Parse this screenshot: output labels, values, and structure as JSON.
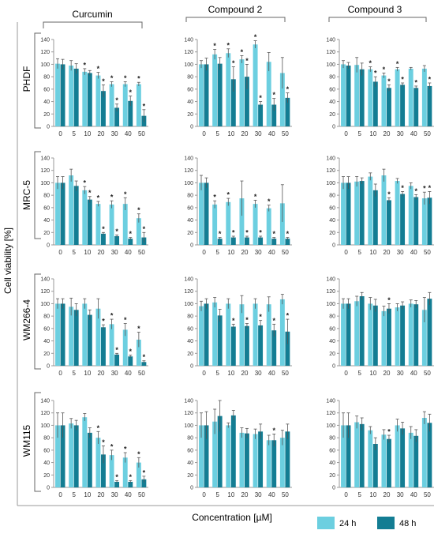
{
  "columns": [
    "Curcumin",
    "Compound 2",
    "Compound 3"
  ],
  "rows": [
    "PHDF",
    "MRC-5",
    "WM266-4",
    "WM115"
  ],
  "ylabel": "Cell viability [%]",
  "xlabel": "Concentration [µM]",
  "legend": [
    {
      "label": "24 h",
      "color": "#6ccfe0"
    },
    {
      "label": "48 h",
      "color": "#137d93"
    }
  ],
  "colors": {
    "series_24h": "#6ccfe0",
    "series_48h": "#137d93",
    "axis": "#999999"
  },
  "chart_data": {
    "type": "bar",
    "layout": "grid of grouped bar charts, 4 rows x 3 columns",
    "categories": [
      "0",
      "5",
      "10",
      "20",
      "30",
      "40",
      "50"
    ],
    "yticks": [
      "0",
      "20",
      "40",
      "60",
      "80",
      "100",
      "120",
      "140"
    ],
    "ylim": [
      0,
      140
    ],
    "legend_position": "bottom-right",
    "panels": [
      {
        "row": "PHDF",
        "column": "Curcumin",
        "yticks": [
          "0",
          "20",
          "40",
          "60",
          "80",
          "100",
          "120",
          "140"
        ],
        "series": [
          {
            "name": "24 h",
            "values": [
              101,
              98,
              88,
              82,
              68,
              68,
              68
            ],
            "errors": [
              8,
              8,
              5,
              5,
              4,
              4,
              3
            ],
            "sig": [
              false,
              false,
              true,
              true,
              true,
              true,
              true
            ]
          },
          {
            "name": "48 h",
            "values": [
              100,
              93,
              86,
              57,
              30,
              41,
              17
            ],
            "errors": [
              8,
              8,
              4,
              10,
              6,
              8,
              10
            ],
            "sig": [
              false,
              false,
              false,
              true,
              true,
              true,
              true
            ]
          }
        ]
      },
      {
        "row": "PHDF",
        "column": "Compound 2",
        "yticks": [
          "0",
          "20",
          "40",
          "60",
          "80",
          "100",
          "120",
          "140"
        ],
        "series": [
          {
            "name": "24 h",
            "values": [
              100,
              116,
              118,
              108,
              132,
              104,
              86
            ],
            "errors": [
              6,
              8,
              7,
              6,
              6,
              15,
              25
            ],
            "sig": [
              false,
              true,
              true,
              true,
              true,
              false,
              false
            ]
          },
          {
            "name": "48 h",
            "values": [
              100,
              101,
              76,
              80,
              35,
              35,
              46
            ],
            "errors": [
              10,
              10,
              20,
              20,
              5,
              10,
              8
            ],
            "sig": [
              false,
              false,
              true,
              true,
              true,
              true,
              true
            ]
          }
        ]
      },
      {
        "row": "PHDF",
        "column": "Compound 3",
        "yticks": [
          "0",
          "20",
          "40",
          "60",
          "80",
          "100",
          "120",
          "140"
        ],
        "series": [
          {
            "name": "24 h",
            "values": [
              100,
              99,
              92,
              82,
              92,
              93,
              93
            ],
            "errors": [
              6,
              12,
              4,
              4,
              3,
              2,
              5
            ],
            "sig": [
              false,
              false,
              true,
              true,
              true,
              false,
              false
            ]
          },
          {
            "name": "48 h",
            "values": [
              98,
              92,
              72,
              62,
              67,
              62,
              65
            ],
            "errors": [
              5,
              10,
              8,
              5,
              3,
              3,
              5
            ],
            "sig": [
              false,
              false,
              true,
              true,
              true,
              true,
              true
            ]
          }
        ]
      },
      {
        "row": "MRC-5",
        "column": "Curcumin",
        "yticks": [
          "0",
          "20",
          "40",
          "60",
          "80",
          "100",
          "120",
          "140"
        ],
        "series": [
          {
            "name": "24 h",
            "values": [
              100,
              112,
              88,
              66,
              65,
              66,
              43
            ],
            "errors": [
              10,
              10,
              6,
              4,
              6,
              10,
              7
            ],
            "sig": [
              false,
              false,
              true,
              true,
              true,
              true,
              true
            ]
          },
          {
            "name": "48 h",
            "values": [
              100,
              95,
              73,
              18,
              14,
              10,
              12
            ],
            "errors": [
              10,
              8,
              5,
              2,
              2,
              2,
              8
            ],
            "sig": [
              false,
              false,
              true,
              true,
              true,
              true,
              true
            ]
          }
        ]
      },
      {
        "row": "MRC-5",
        "column": "Compound 2",
        "yticks": [
          "0",
          "20",
          "40",
          "60",
          "80",
          "100",
          "120",
          "140"
        ],
        "series": [
          {
            "name": "24 h",
            "values": [
              100,
              65,
              69,
              75,
              66,
              59,
              67
            ],
            "errors": [
              12,
              6,
              6,
              28,
              6,
              5,
              30
            ],
            "sig": [
              false,
              true,
              true,
              false,
              true,
              true,
              false
            ]
          },
          {
            "name": "48 h",
            "values": [
              100,
              10,
              12,
              12,
              12,
              10,
              10
            ],
            "errors": [
              8,
              2,
              2,
              2,
              2,
              2,
              2
            ],
            "sig": [
              false,
              true,
              true,
              true,
              true,
              true,
              true
            ]
          }
        ]
      },
      {
        "row": "MRC-5",
        "column": "Compound 3",
        "yticks": [
          "0",
          "20",
          "40",
          "60",
          "80",
          "100",
          "120",
          "140"
        ],
        "series": [
          {
            "name": "24 h",
            "values": [
              100,
              102,
              110,
              112,
              103,
              95,
              75
            ],
            "errors": [
              10,
              8,
              6,
              10,
              4,
              5,
              10
            ],
            "sig": [
              false,
              false,
              false,
              false,
              false,
              false,
              true
            ]
          },
          {
            "name": "48 h",
            "values": [
              100,
              103,
              88,
              72,
              82,
              77,
              76
            ],
            "errors": [
              10,
              5,
              10,
              4,
              4,
              4,
              10
            ],
            "sig": [
              false,
              false,
              false,
              true,
              true,
              true,
              true
            ]
          }
        ]
      },
      {
        "row": "WM266-4",
        "column": "Curcumin",
        "yticks": [
          "0",
          "20",
          "40",
          "60",
          "80",
          "100",
          "120",
          "140"
        ],
        "series": [
          {
            "name": "24 h",
            "values": [
              100,
              95,
              100,
              92,
              67,
              58,
              42
            ],
            "errors": [
              8,
              14,
              8,
              16,
              8,
              10,
              12
            ],
            "sig": [
              false,
              false,
              false,
              false,
              true,
              true,
              true
            ]
          },
          {
            "name": "48 h",
            "values": [
              100,
              90,
              82,
              62,
              18,
              15,
              6
            ],
            "errors": [
              8,
              10,
              8,
              4,
              2,
              2,
              2
            ],
            "sig": [
              false,
              false,
              false,
              true,
              true,
              true,
              true
            ]
          }
        ]
      },
      {
        "row": "WM266-4",
        "column": "Compound 2",
        "yticks": [
          "0",
          "20",
          "40",
          "60",
          "80",
          "100",
          "120",
          "140"
        ],
        "series": [
          {
            "name": "24 h",
            "values": [
              96,
              102,
              100,
              99,
              100,
              99,
              107
            ],
            "errors": [
              8,
              8,
              8,
              14,
              8,
              12,
              8
            ],
            "sig": [
              false,
              false,
              false,
              false,
              false,
              false,
              false
            ]
          },
          {
            "name": "48 h",
            "values": [
              100,
              81,
              63,
              64,
              65,
              57,
              55
            ],
            "errors": [
              8,
              10,
              4,
              4,
              8,
              10,
              20
            ],
            "sig": [
              false,
              false,
              true,
              true,
              true,
              true,
              true
            ]
          }
        ]
      },
      {
        "row": "WM266-4",
        "column": "Compound 3",
        "yticks": [
          "0",
          "20",
          "40",
          "60",
          "80",
          "100",
          "120",
          "140"
        ],
        "series": [
          {
            "name": "24 h",
            "values": [
              100,
              104,
              100,
              88,
              94,
              100,
              90
            ],
            "errors": [
              8,
              8,
              10,
              8,
              6,
              6,
              20
            ],
            "sig": [
              false,
              false,
              false,
              false,
              false,
              false,
              false
            ]
          },
          {
            "name": "48 h",
            "values": [
              100,
              112,
              97,
              92,
              97,
              99,
              108
            ],
            "errors": [
              8,
              6,
              10,
              8,
              6,
              6,
              10
            ],
            "sig": [
              false,
              false,
              false,
              true,
              false,
              false,
              false
            ]
          }
        ]
      },
      {
        "row": "WM115",
        "column": "Curcumin",
        "yticks": [
          "0",
          "20",
          "40",
          "60",
          "80",
          "100",
          "120",
          "140"
        ],
        "series": [
          {
            "name": "24 h",
            "values": [
              100,
              103,
              113,
              80,
              52,
              48,
              40
            ],
            "errors": [
              20,
              8,
              6,
              10,
              8,
              8,
              8
            ],
            "sig": [
              false,
              false,
              false,
              true,
              true,
              true,
              true
            ]
          },
          {
            "name": "48 h",
            "values": [
              100,
              100,
              88,
              53,
              9,
              9,
              13
            ],
            "errors": [
              20,
              8,
              8,
              14,
              2,
              2,
              5
            ],
            "sig": [
              false,
              false,
              false,
              true,
              true,
              true,
              true
            ]
          }
        ]
      },
      {
        "row": "WM115",
        "column": "Compound 2",
        "yticks": [
          "0",
          "20",
          "40",
          "60",
          "80",
          "100",
          "120",
          "140"
        ],
        "series": [
          {
            "name": "24 h",
            "values": [
              100,
              106,
              100,
              88,
              86,
              76,
              80
            ],
            "errors": [
              20,
              20,
              4,
              8,
              8,
              8,
              12
            ],
            "sig": [
              false,
              false,
              false,
              false,
              false,
              false,
              false
            ]
          },
          {
            "name": "48 h",
            "values": [
              100,
              115,
              116,
              87,
              90,
              76,
              90
            ],
            "errors": [
              22,
              25,
              8,
              8,
              12,
              10,
              12
            ],
            "sig": [
              false,
              false,
              false,
              false,
              false,
              true,
              false
            ]
          }
        ]
      },
      {
        "row": "WM115",
        "column": "Compound 3",
        "yticks": [
          "0",
          "20",
          "40",
          "60",
          "80",
          "100",
          "120",
          "140"
        ],
        "series": [
          {
            "name": "24 h",
            "values": [
              100,
              105,
              92,
              85,
              100,
              88,
              112
            ],
            "errors": [
              20,
              10,
              6,
              8,
              10,
              10,
              10
            ],
            "sig": [
              false,
              false,
              false,
              false,
              false,
              false,
              false
            ]
          },
          {
            "name": "48 h",
            "values": [
              100,
              102,
              70,
              78,
              95,
              83,
              104
            ],
            "errors": [
              20,
              10,
              10,
              6,
              10,
              10,
              14
            ],
            "sig": [
              false,
              false,
              false,
              true,
              false,
              false,
              false
            ]
          }
        ]
      }
    ]
  }
}
